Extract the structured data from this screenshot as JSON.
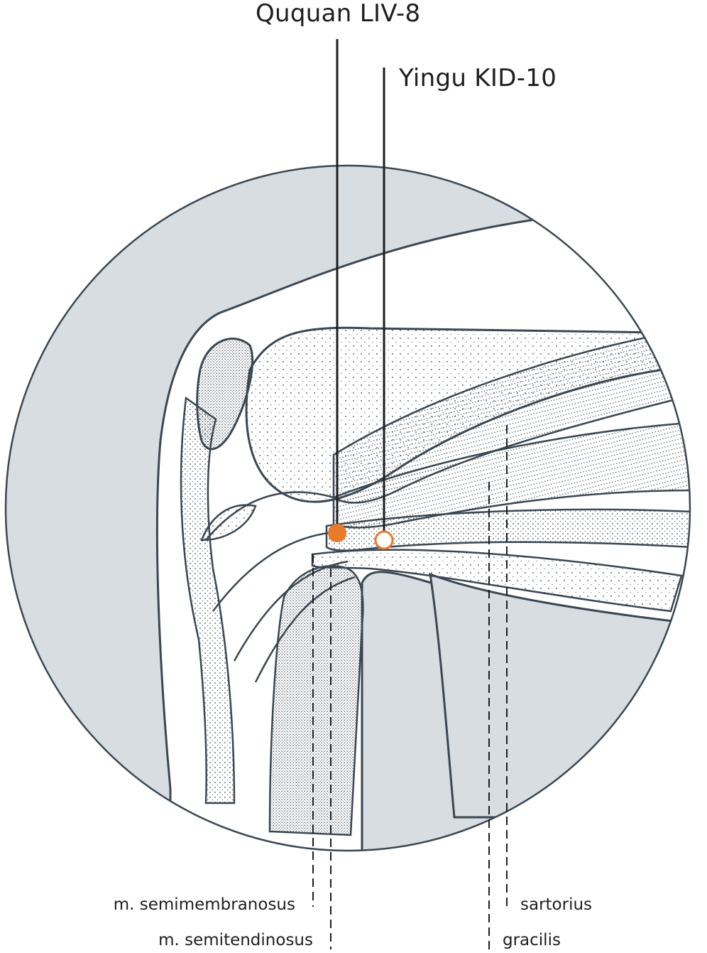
{
  "points": {
    "ququan": {
      "label": "Ququan LIV-8",
      "marker_style": "filled",
      "color": "#e87a2c"
    },
    "yingu": {
      "label": "Yingu KID-10",
      "marker_style": "hollow",
      "color": "#e87a2c"
    }
  },
  "structures": {
    "semimembranosus": {
      "label": "m. semimembranosus"
    },
    "semitendinosus": {
      "label": "m. semitendinosus"
    },
    "sartorius": {
      "label": "sartorius"
    },
    "gracilis": {
      "label": "gracilis"
    }
  },
  "colors": {
    "background_fill": "#d8dde2",
    "outline": "#3b4752",
    "tissue": "#ffffff",
    "label_text": "#1e1e1e"
  }
}
